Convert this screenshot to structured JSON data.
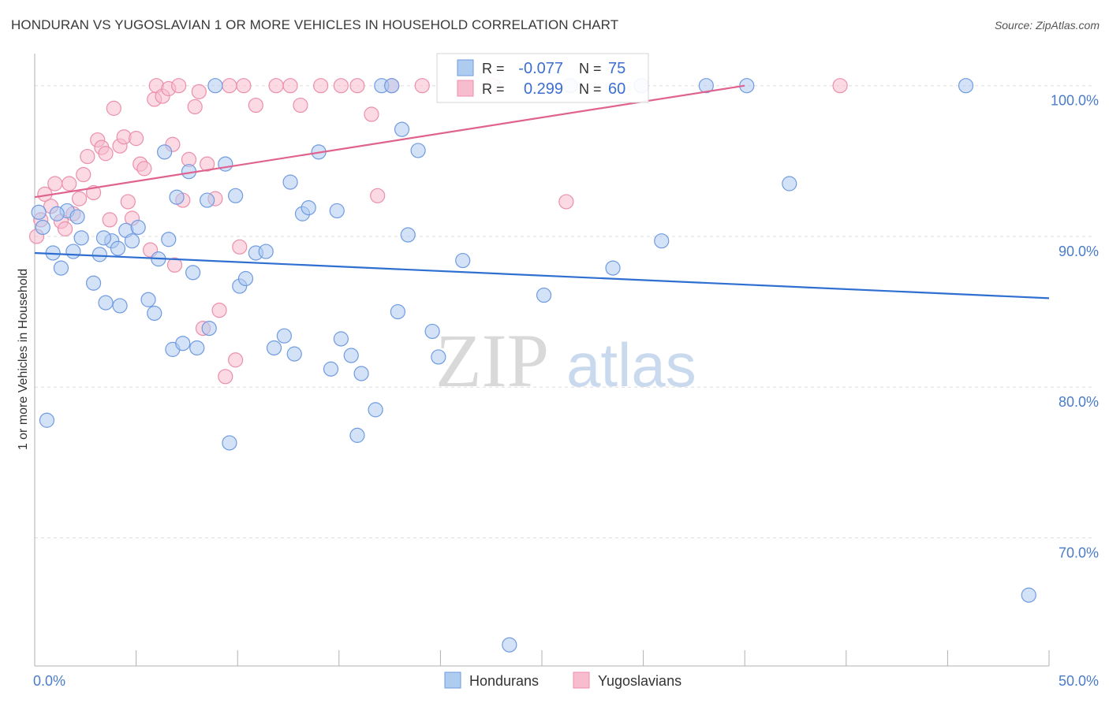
{
  "title": "HONDURAN VS YUGOSLAVIAN 1 OR MORE VEHICLES IN HOUSEHOLD CORRELATION CHART",
  "source": "Source: ZipAtlas.com",
  "watermark": {
    "zip": "ZIP",
    "atlas": "atlas"
  },
  "colors": {
    "blue_fill": "#aecbf0",
    "blue_stroke": "#6f9be0",
    "blue_line": "#2f6fd1",
    "pink_fill": "#f7bccd",
    "pink_stroke": "#ec8fac",
    "pink_line": "#e0628f",
    "grid": "#dddddd",
    "axis_text": "#4a7cc9"
  },
  "legend": {
    "rows": [
      {
        "r_label": "R =",
        "r_value": "-0.077",
        "n_label": "N =",
        "n_value": "75",
        "color": "blue"
      },
      {
        "r_label": "R =",
        "r_value": "0.299",
        "n_label": "N =",
        "n_value": "60",
        "color": "pink"
      }
    ]
  },
  "bottom_legend": [
    {
      "label": "Hondurans",
      "color": "blue"
    },
    {
      "label": "Yugoslavians",
      "color": "pink"
    }
  ],
  "chart_data": {
    "type": "scatter",
    "title": "HONDURAN VS YUGOSLAVIAN 1 OR MORE VEHICLES IN HOUSEHOLD CORRELATION CHART",
    "xlabel": "",
    "ylabel": "1 or more Vehicles in Household",
    "xlim": [
      0,
      50
    ],
    "ylim": [
      61.5,
      101.5
    ],
    "x_tick_labels": [
      "0.0%",
      "50.0%"
    ],
    "y_ticks": [
      100,
      90,
      80,
      70
    ],
    "y_tick_labels": [
      "100.0%",
      "90.0%",
      "80.0%",
      "70.0%"
    ],
    "grid": true,
    "series": [
      {
        "name": "Hondurans",
        "color": "blue",
        "trend": {
          "x": [
            0,
            50
          ],
          "y": [
            88.9,
            85.9
          ]
        },
        "points": [
          [
            0.2,
            91.6
          ],
          [
            0.4,
            90.6
          ],
          [
            0.6,
            77.8
          ],
          [
            0.9,
            88.9
          ],
          [
            1.3,
            87.9
          ],
          [
            1.6,
            91.7
          ],
          [
            1.1,
            91.5
          ],
          [
            2.1,
            91.3
          ],
          [
            1.9,
            89.0
          ],
          [
            2.3,
            89.9
          ],
          [
            2.9,
            86.9
          ],
          [
            3.2,
            88.8
          ],
          [
            3.5,
            85.6
          ],
          [
            3.8,
            89.7
          ],
          [
            3.4,
            89.9
          ],
          [
            4.2,
            85.4
          ],
          [
            4.5,
            90.4
          ],
          [
            4.8,
            89.7
          ],
          [
            4.1,
            89.2
          ],
          [
            5.1,
            90.6
          ],
          [
            5.6,
            85.8
          ],
          [
            5.9,
            84.9
          ],
          [
            6.1,
            88.5
          ],
          [
            6.4,
            95.6
          ],
          [
            6.6,
            89.8
          ],
          [
            6.8,
            82.5
          ],
          [
            7.0,
            92.6
          ],
          [
            7.3,
            82.9
          ],
          [
            7.6,
            94.3
          ],
          [
            7.8,
            87.6
          ],
          [
            8.0,
            82.6
          ],
          [
            8.5,
            92.4
          ],
          [
            8.6,
            83.9
          ],
          [
            8.9,
            100.0
          ],
          [
            9.4,
            94.8
          ],
          [
            9.6,
            76.3
          ],
          [
            9.9,
            92.7
          ],
          [
            10.1,
            86.7
          ],
          [
            10.4,
            87.2
          ],
          [
            10.9,
            88.9
          ],
          [
            11.4,
            89.0
          ],
          [
            11.8,
            82.6
          ],
          [
            12.3,
            83.4
          ],
          [
            12.6,
            93.6
          ],
          [
            12.8,
            82.2
          ],
          [
            13.2,
            91.5
          ],
          [
            13.5,
            91.9
          ],
          [
            14.0,
            95.6
          ],
          [
            14.6,
            81.2
          ],
          [
            14.9,
            91.7
          ],
          [
            15.1,
            83.2
          ],
          [
            15.6,
            82.1
          ],
          [
            15.9,
            76.8
          ],
          [
            16.1,
            80.9
          ],
          [
            16.8,
            78.5
          ],
          [
            17.1,
            100.0
          ],
          [
            17.6,
            100.0
          ],
          [
            17.9,
            85.0
          ],
          [
            18.1,
            97.1
          ],
          [
            18.4,
            90.1
          ],
          [
            18.9,
            95.7
          ],
          [
            19.6,
            83.7
          ],
          [
            19.9,
            82.0
          ],
          [
            21.1,
            88.4
          ],
          [
            23.4,
            62.9
          ],
          [
            25.1,
            86.1
          ],
          [
            26.4,
            100.0
          ],
          [
            28.5,
            87.9
          ],
          [
            29.9,
            100.0
          ],
          [
            30.9,
            89.7
          ],
          [
            33.1,
            100.0
          ],
          [
            35.1,
            100.0
          ],
          [
            37.2,
            93.5
          ],
          [
            45.9,
            100.0
          ],
          [
            49.0,
            66.2
          ]
        ]
      },
      {
        "name": "Yugoslavians",
        "color": "pink",
        "trend": {
          "x": [
            0,
            35
          ],
          "y": [
            92.6,
            100.0
          ]
        },
        "points": [
          [
            0.1,
            90.0
          ],
          [
            0.3,
            91.1
          ],
          [
            0.5,
            92.8
          ],
          [
            0.8,
            92.0
          ],
          [
            1.0,
            93.5
          ],
          [
            1.3,
            91.0
          ],
          [
            1.5,
            90.5
          ],
          [
            1.7,
            93.5
          ],
          [
            1.9,
            91.5
          ],
          [
            2.2,
            92.5
          ],
          [
            2.4,
            94.1
          ],
          [
            2.6,
            95.3
          ],
          [
            2.9,
            92.9
          ],
          [
            3.1,
            96.4
          ],
          [
            3.3,
            95.9
          ],
          [
            3.5,
            95.5
          ],
          [
            3.7,
            91.1
          ],
          [
            3.9,
            98.5
          ],
          [
            4.2,
            96.0
          ],
          [
            4.4,
            96.6
          ],
          [
            4.6,
            92.3
          ],
          [
            4.8,
            91.2
          ],
          [
            5.0,
            96.5
          ],
          [
            5.2,
            94.8
          ],
          [
            5.4,
            94.5
          ],
          [
            5.7,
            89.1
          ],
          [
            5.9,
            99.1
          ],
          [
            6.0,
            100.0
          ],
          [
            6.3,
            99.3
          ],
          [
            6.6,
            99.8
          ],
          [
            6.9,
            88.1
          ],
          [
            6.8,
            96.1
          ],
          [
            7.1,
            100.0
          ],
          [
            7.3,
            92.4
          ],
          [
            7.6,
            95.1
          ],
          [
            7.9,
            98.6
          ],
          [
            8.1,
            99.6
          ],
          [
            8.3,
            83.9
          ],
          [
            8.5,
            94.8
          ],
          [
            8.9,
            92.5
          ],
          [
            9.1,
            85.1
          ],
          [
            9.4,
            80.7
          ],
          [
            9.6,
            100.0
          ],
          [
            9.9,
            81.8
          ],
          [
            10.1,
            89.3
          ],
          [
            10.3,
            100.0
          ],
          [
            10.9,
            98.7
          ],
          [
            11.9,
            100.0
          ],
          [
            12.6,
            100.0
          ],
          [
            13.1,
            98.7
          ],
          [
            14.1,
            100.0
          ],
          [
            15.1,
            100.0
          ],
          [
            15.9,
            100.0
          ],
          [
            16.6,
            98.1
          ],
          [
            16.9,
            92.7
          ],
          [
            17.6,
            100.0
          ],
          [
            19.1,
            100.0
          ],
          [
            22.6,
            100.0
          ],
          [
            26.2,
            92.3
          ],
          [
            39.7,
            100.0
          ]
        ]
      }
    ]
  }
}
